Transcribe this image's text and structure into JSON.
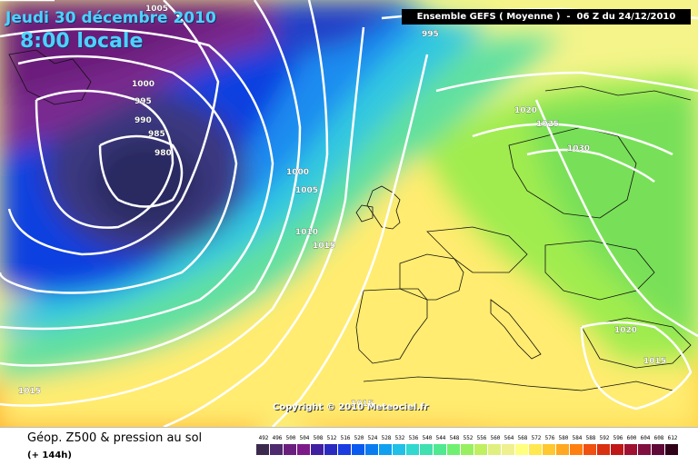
{
  "map": {
    "date_line": "Jeudi 30 décembre 2010",
    "time_line": "8:00 locale",
    "run_label": "Ensemble GEFS ( Moyenne )  -  06 Z du 24/12/2010",
    "copyright": "Copyright © 2010 Meteociel.fr",
    "isobars": [
      {
        "label": "1005"
      },
      {
        "label": "995"
      },
      {
        "label": "1000"
      },
      {
        "label": "995"
      },
      {
        "label": "990"
      },
      {
        "label": "985"
      },
      {
        "label": "980"
      },
      {
        "label": "1000"
      },
      {
        "label": "1005"
      },
      {
        "label": "1010"
      },
      {
        "label": "1015"
      },
      {
        "label": "1015"
      },
      {
        "label": "1015"
      },
      {
        "label": "1020"
      },
      {
        "label": "1025"
      },
      {
        "label": "1030"
      },
      {
        "label": "1020"
      },
      {
        "label": "1015"
      }
    ]
  },
  "footer": {
    "field_title": "Géop. Z500 & pression au sol",
    "lead_time": "(+ 144h)"
  },
  "legend": {
    "values": [
      "492",
      "496",
      "500",
      "504",
      "508",
      "512",
      "516",
      "520",
      "524",
      "528",
      "532",
      "536",
      "540",
      "544",
      "548",
      "552",
      "556",
      "560",
      "564",
      "568",
      "572",
      "576",
      "580",
      "584",
      "588",
      "592",
      "596",
      "600",
      "604",
      "608",
      "612"
    ],
    "colors": [
      "#3c2a4e",
      "#4e2a6e",
      "#6a1f7e",
      "#7d1a8a",
      "#4020a0",
      "#2a2ac0",
      "#1a3ce0",
      "#0a5af0",
      "#0a7cf0",
      "#10a0f0",
      "#20c0e8",
      "#30d8d0",
      "#40e0b0",
      "#50e890",
      "#70f070",
      "#98f060",
      "#c0f060",
      "#e0f080",
      "#f0f090",
      "#ffff80",
      "#ffe850",
      "#ffc830",
      "#ffa820",
      "#ff8010",
      "#f05010",
      "#d83010",
      "#c01818",
      "#a01030",
      "#801040",
      "#600838",
      "#300018"
    ]
  },
  "colors": {
    "label_cyan": "#4cd2ff",
    "isobar": "#ffffff"
  }
}
